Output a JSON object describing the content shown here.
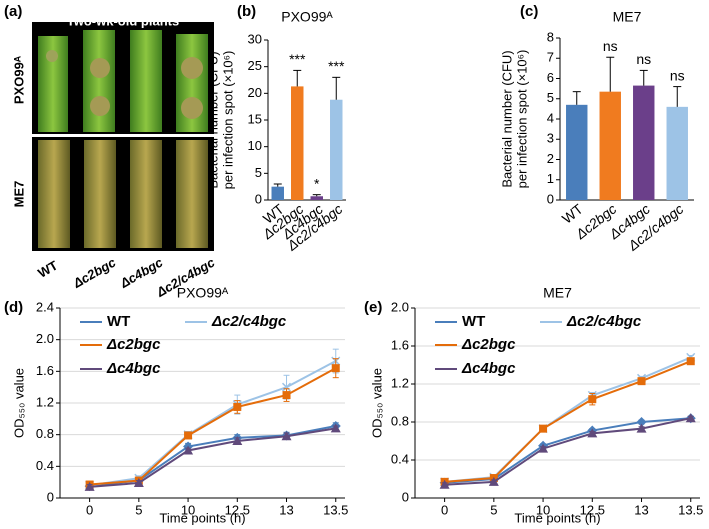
{
  "photo_panel": {
    "panel": "(a)",
    "title": "Two-wk-old plants",
    "rows": [
      "PXO99ᴬ",
      "ME7"
    ],
    "columns": [
      "WT",
      "Δc2bgc",
      "Δc4bgc",
      "Δc2/c4bgc"
    ]
  },
  "chart_data": [
    {
      "type": "bar",
      "panel": "(b)",
      "title": "PXO99ᴬ",
      "y_label": [
        "Bacterial number (CFU)",
        "per infection spot (×10⁶)"
      ],
      "categories": [
        "WT",
        "Δc2bgc",
        "Δc4bgc",
        "Δc2/c4bgc"
      ],
      "values": [
        2.5,
        21.3,
        0.7,
        18.8
      ],
      "errors": [
        0.5,
        3,
        0.3,
        4.2
      ],
      "annotations": [
        null,
        "***",
        "*",
        "***"
      ],
      "colors": [
        "#4a7ebb",
        "#f07b1f",
        "#6b3f8a",
        "#9dc3e6"
      ],
      "ylim": [
        0,
        30
      ],
      "yticks": [
        0,
        5,
        10,
        15,
        20,
        25,
        30
      ],
      "grid": false
    },
    {
      "type": "bar",
      "panel": "(c)",
      "title": "ME7",
      "y_label": [
        "Bacterial number (CFU)",
        "per infection spot (×10⁶)"
      ],
      "categories": [
        "WT",
        "Δc2bgc",
        "Δc4bgc",
        "Δc2/c4bgc"
      ],
      "values": [
        4.7,
        5.35,
        5.65,
        4.6
      ],
      "errors": [
        0.65,
        1.7,
        0.75,
        1.0
      ],
      "annotations": [
        null,
        "ns",
        "ns",
        "ns"
      ],
      "colors": [
        "#4a7ebb",
        "#f07b1f",
        "#6b3f8a",
        "#9dc3e6"
      ],
      "ylim": [
        0,
        8
      ],
      "yticks": [
        0,
        1,
        2,
        3,
        4,
        5,
        6,
        7,
        8
      ],
      "grid": false
    },
    {
      "type": "line",
      "panel": "(d)",
      "title": "PXO99ᴬ",
      "x_label": "Time points (h)",
      "y_label": [
        "OD₅₅₀ value"
      ],
      "categories": [
        "0",
        "5",
        "10",
        "12.5",
        "13",
        "13.5"
      ],
      "series": [
        {
          "name": "WT",
          "color": "#4a7ebb",
          "marker": "diamond",
          "values": [
            0.15,
            0.22,
            0.65,
            0.76,
            0.79,
            0.91
          ],
          "errors": [
            0.03,
            0.03,
            0.04,
            0.04,
            0.04,
            0.04
          ]
        },
        {
          "name": "Δc2/c4bgc",
          "color": "#9dc3e6",
          "marker": "x",
          "values": [
            0.16,
            0.25,
            0.8,
            1.18,
            1.4,
            1.73
          ],
          "errors": [
            0.03,
            0.03,
            0.04,
            0.12,
            0.15,
            0.15
          ]
        },
        {
          "name": "Δc2bgc",
          "color": "#e46c0a",
          "marker": "square",
          "values": [
            0.17,
            0.22,
            0.79,
            1.15,
            1.3,
            1.64
          ],
          "errors": [
            0.03,
            0.03,
            0.03,
            0.08,
            0.08,
            0.12
          ]
        },
        {
          "name": "Δc4bgc",
          "color": "#604a7b",
          "marker": "triangle",
          "values": [
            0.14,
            0.19,
            0.6,
            0.72,
            0.78,
            0.88
          ],
          "errors": [
            0.03,
            0.03,
            0.03,
            0.04,
            0.04,
            0.03
          ]
        }
      ],
      "ylim": [
        0,
        2.4
      ],
      "yticks": [
        0,
        0.4,
        0.8,
        1.2,
        1.6,
        {
          "value": 2,
          "label": "2.0"
        },
        2.4
      ],
      "grid": true
    },
    {
      "type": "line",
      "panel": "(e)",
      "title": "ME7",
      "x_label": "Time points (h)",
      "y_label": [
        "OD₅₅₀ value"
      ],
      "categories": [
        "0",
        "5",
        "10",
        "12.5",
        "13",
        "13.5"
      ],
      "series": [
        {
          "name": "WT",
          "color": "#4a7ebb",
          "marker": "diamond",
          "values": [
            0.16,
            0.2,
            0.55,
            0.71,
            0.8,
            0.84
          ],
          "errors": [
            0.02,
            0.02,
            0.02,
            0.02,
            0.02,
            0.02
          ]
        },
        {
          "name": "Δc2/c4bgc",
          "color": "#9dc3e6",
          "marker": "x",
          "values": [
            0.17,
            0.22,
            0.73,
            1.08,
            1.26,
            1.48
          ],
          "errors": [
            0.02,
            0.02,
            0.02,
            0.03,
            0.02,
            0.02
          ]
        },
        {
          "name": "Δc2bgc",
          "color": "#e46c0a",
          "marker": "square",
          "values": [
            0.17,
            0.21,
            0.73,
            1.04,
            1.23,
            1.44
          ],
          "errors": [
            0.02,
            0.02,
            0.02,
            0.06,
            0.02,
            0.03
          ]
        },
        {
          "name": "Δc4bgc",
          "color": "#604a7b",
          "marker": "triangle",
          "values": [
            0.14,
            0.17,
            0.52,
            0.68,
            0.73,
            0.84
          ],
          "errors": [
            0.02,
            0.02,
            0.02,
            0.02,
            0.02,
            0.02
          ]
        }
      ],
      "ylim": [
        0,
        2
      ],
      "yticks": [
        0,
        0.4,
        0.8,
        1.2,
        1.6,
        {
          "value": 2,
          "label": "2.0"
        }
      ],
      "grid": true
    }
  ]
}
